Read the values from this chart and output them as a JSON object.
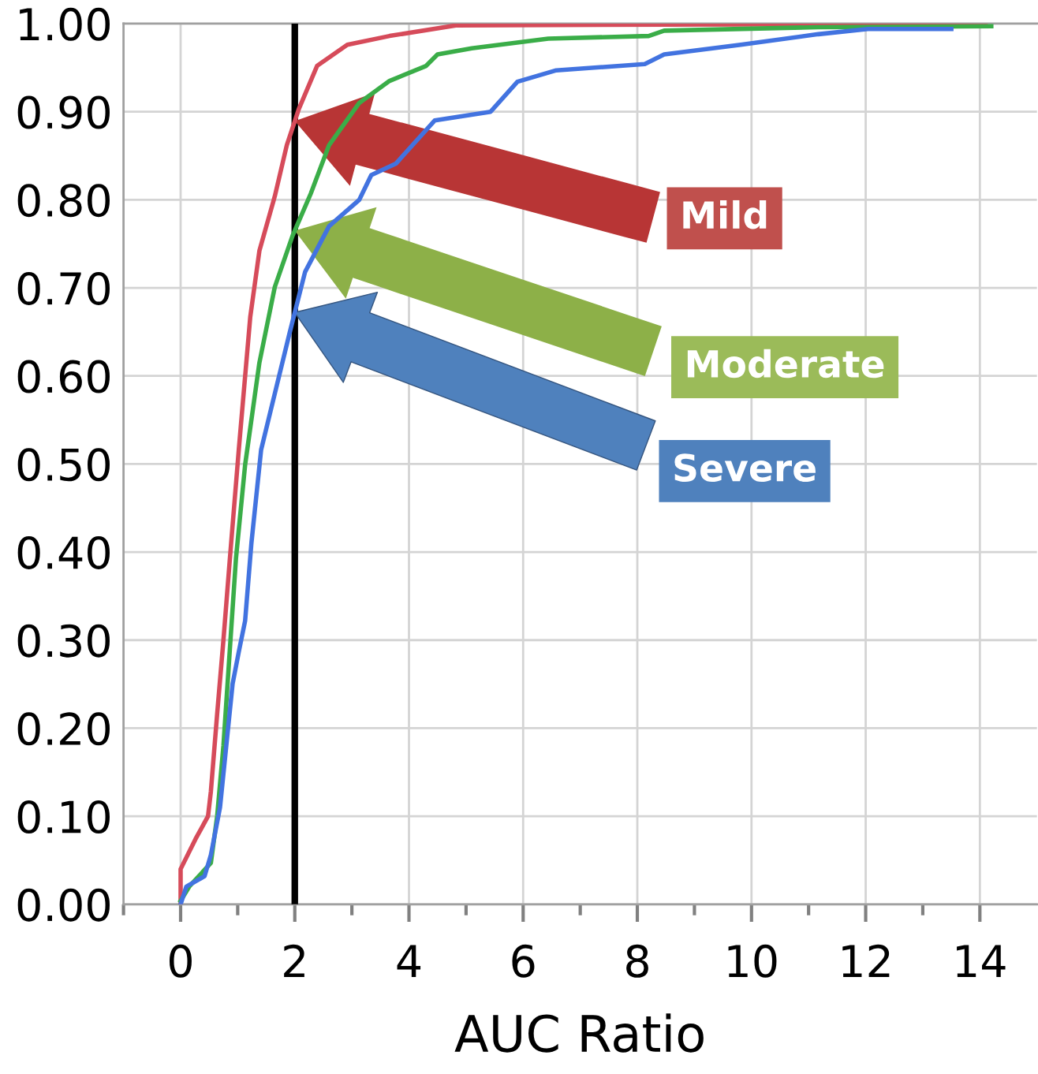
{
  "chart_data": {
    "type": "line",
    "xlabel": "AUC Ratio",
    "xlim": [
      -1,
      15
    ],
    "ylim": [
      0,
      1
    ],
    "xticks": [
      {
        "value": -1,
        "label": null
      },
      0,
      {
        "value": 1,
        "label": null
      },
      2,
      {
        "value": 3,
        "label": null
      },
      4,
      {
        "value": 5,
        "label": null
      },
      6,
      {
        "value": 7,
        "label": null
      },
      8,
      {
        "value": 9,
        "label": null
      },
      10,
      {
        "value": 11,
        "label": null
      },
      12,
      {
        "value": 13,
        "label": null
      },
      14
    ],
    "yticks": [
      {
        "value": 0,
        "label": "0.00"
      },
      {
        "value": 0.1,
        "label": "0.10"
      },
      {
        "value": 0.2,
        "label": "0.20"
      },
      {
        "value": 0.3,
        "label": "0.30"
      },
      {
        "value": 0.4,
        "label": "0.40"
      },
      {
        "value": 0.5,
        "label": "0.50"
      },
      {
        "value": 0.6,
        "label": "0.60"
      },
      {
        "value": 0.7,
        "label": "0.70"
      },
      {
        "value": 0.8,
        "label": "0.80"
      },
      {
        "value": 0.9,
        "label": "0.90"
      },
      {
        "value": 1,
        "label": "1.00"
      }
    ],
    "grid": true,
    "legend": false,
    "marker": "none",
    "line_style": "solid",
    "series": [
      {
        "color": "#d64b5a",
        "x": [
          0,
          0,
          0.26,
          0.48,
          0.53,
          0.64,
          0.75,
          0.86,
          1.02,
          1.22,
          1.38,
          1.65,
          1.86,
          2.07,
          2.39,
          2.92,
          3.66,
          4.82,
          14.1
        ],
        "values": [
          0,
          0.04,
          0.074,
          0.1,
          0.128,
          0.216,
          0.3,
          0.39,
          0.517,
          0.667,
          0.742,
          0.804,
          0.862,
          0.903,
          0.952,
          0.976,
          0.986,
          0.998,
          1.0
        ]
      },
      {
        "color": "#3aad48",
        "x": [
          0,
          0.15,
          0.53,
          0.64,
          0.75,
          0.86,
          0.97,
          1.13,
          1.38,
          1.65,
          1.96,
          2.28,
          2.6,
          3.13,
          3.66,
          4.3,
          4.5,
          5.1,
          6.44,
          8.2,
          8.47,
          11.17,
          14.2
        ],
        "values": [
          0.004,
          0.02,
          0.047,
          0.1,
          0.18,
          0.287,
          0.393,
          0.499,
          0.615,
          0.701,
          0.759,
          0.807,
          0.862,
          0.91,
          0.935,
          0.952,
          0.965,
          0.972,
          0.983,
          0.986,
          0.992,
          0.996,
          0.997
        ]
      },
      {
        "color": "#4273e0",
        "x": [
          0,
          0.1,
          0.42,
          0.53,
          0.69,
          0.8,
          0.91,
          1.02,
          1.13,
          1.24,
          1.41,
          1.65,
          1.91,
          2.18,
          2.6,
          3.13,
          3.34,
          3.77,
          4.45,
          5.43,
          5.9,
          6.58,
          8.13,
          8.47,
          9.81,
          11.17,
          12.04,
          13.5
        ],
        "values": [
          0,
          0.02,
          0.032,
          0.056,
          0.11,
          0.18,
          0.25,
          0.287,
          0.322,
          0.41,
          0.516,
          0.58,
          0.649,
          0.718,
          0.77,
          0.8,
          0.828,
          0.841,
          0.89,
          0.9,
          0.934,
          0.947,
          0.954,
          0.965,
          0.976,
          0.988,
          0.994,
          0.994
        ]
      }
    ],
    "ref_lines": [
      {
        "axis": "x",
        "value": 2,
        "color": "#000000",
        "line_style": "solid"
      }
    ],
    "annotations": [
      "Mild",
      "Moderate",
      "Severe"
    ]
  }
}
